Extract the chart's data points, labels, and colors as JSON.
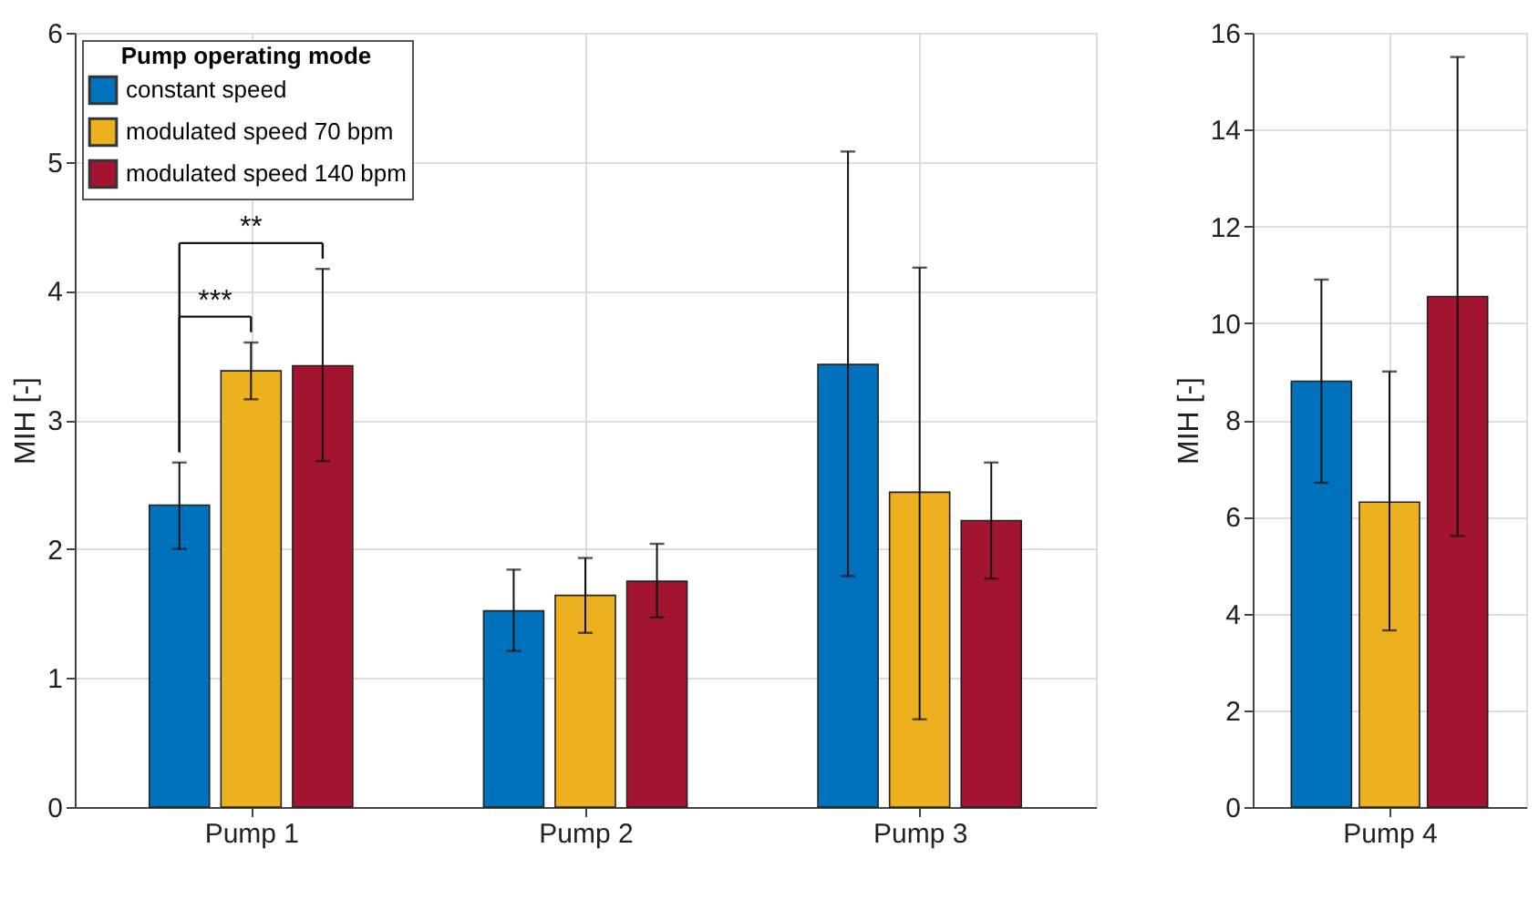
{
  "chart_data": [
    {
      "type": "bar",
      "ylabel": "MIH [-]",
      "categories": [
        "Pump 1",
        "Pump 2",
        "Pump 3"
      ],
      "ylim": [
        0,
        6
      ],
      "yticks": [
        0,
        1,
        2,
        3,
        4,
        5,
        6
      ],
      "grid": true,
      "legend": "top left",
      "legend_title": "Pump operating mode",
      "series": [
        {
          "name": "constant speed",
          "color": "#0072bd",
          "values": [
            2.34,
            1.52,
            3.43
          ],
          "errors": [
            [
              2.0,
              2.67
            ],
            [
              1.21,
              1.84
            ],
            [
              1.79,
              5.08
            ]
          ]
        },
        {
          "name": "modulated speed 70 bpm",
          "color": "#edb120",
          "values": [
            3.38,
            1.64,
            2.44
          ],
          "errors": [
            [
              3.16,
              3.6
            ],
            [
              1.35,
              1.93
            ],
            [
              0.68,
              4.18
            ]
          ]
        },
        {
          "name": "modulated speed 140 bpm",
          "color": "#a2142f",
          "values": [
            3.42,
            1.75,
            2.22
          ],
          "errors": [
            [
              2.68,
              4.17
            ],
            [
              1.47,
              2.04
            ],
            [
              1.77,
              2.67
            ]
          ]
        }
      ],
      "annotations": [
        "***",
        "**"
      ]
    },
    {
      "type": "bar",
      "ylabel": "MIH [-]",
      "categories": [
        "Pump 4"
      ],
      "ylim": [
        0,
        16
      ],
      "yticks": [
        0,
        2,
        4,
        6,
        8,
        10,
        12,
        14,
        16
      ],
      "grid": true,
      "series": [
        {
          "color": "#0072bd",
          "values": [
            8.8
          ],
          "errors": [
            [
              6.7,
              10.9
            ]
          ]
        },
        {
          "color": "#edb120",
          "values": [
            6.3
          ],
          "errors": [
            [
              3.65,
              9.0
            ]
          ]
        },
        {
          "color": "#a2142f",
          "values": [
            10.55
          ],
          "errors": [
            [
              5.6,
              15.5
            ]
          ]
        }
      ]
    }
  ]
}
